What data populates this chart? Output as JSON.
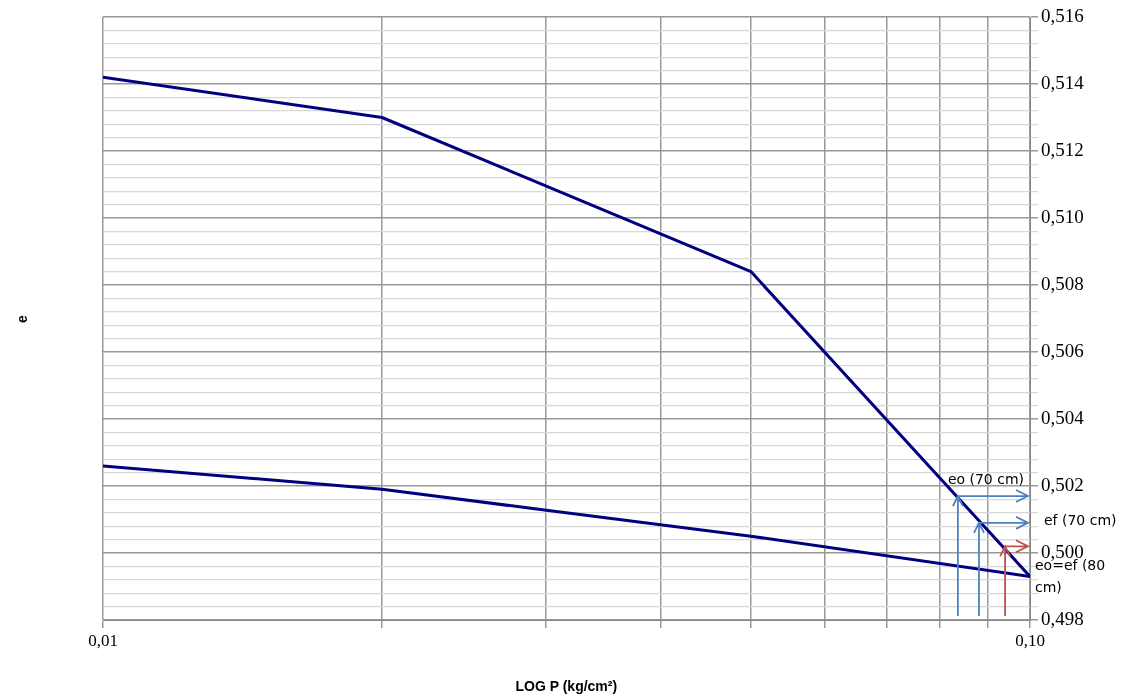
{
  "chart_data": {
    "type": "line",
    "xlabel": "LOG  P  (kg/cm²)",
    "ylabel": "e",
    "log": "x",
    "grid": true,
    "x": [
      0.01,
      0.02,
      0.05,
      0.1
    ],
    "series": [
      {
        "color": "#000080",
        "values": [
          0.5142,
          0.513,
          0.5084,
          0.4993
        ]
      },
      {
        "color": "#000080",
        "values": [
          0.5026,
          0.5019,
          0.5005,
          0.4993
        ]
      }
    ],
    "xlim": [
      0.01,
      0.1
    ],
    "xticks": [
      {
        "value": 0.01,
        "label": "0,01"
      },
      {
        "value": 0.02,
        "label": null
      },
      {
        "value": 0.03,
        "label": null
      },
      {
        "value": 0.04,
        "label": null
      },
      {
        "value": 0.05,
        "label": null
      },
      {
        "value": 0.06,
        "label": null
      },
      {
        "value": 0.07,
        "label": null
      },
      {
        "value": 0.08,
        "label": null
      },
      {
        "value": 0.09,
        "label": null
      },
      {
        "value": 0.1,
        "label": "0,10"
      }
    ],
    "ylim": [
      0.498,
      0.516
    ],
    "yticks": [
      {
        "value": 0.498,
        "label": "0,498"
      },
      {
        "value": 0.4984,
        "label": null
      },
      {
        "value": 0.4988,
        "label": null
      },
      {
        "value": 0.4992,
        "label": null
      },
      {
        "value": 0.4996,
        "label": null
      },
      {
        "value": 0.5,
        "label": "0,500"
      },
      {
        "value": 0.5004,
        "label": null
      },
      {
        "value": 0.5008,
        "label": null
      },
      {
        "value": 0.5012,
        "label": null
      },
      {
        "value": 0.5016,
        "label": null
      },
      {
        "value": 0.502,
        "label": "0,502"
      },
      {
        "value": 0.5024,
        "label": null
      },
      {
        "value": 0.5028,
        "label": null
      },
      {
        "value": 0.5032,
        "label": null
      },
      {
        "value": 0.5036,
        "label": null
      },
      {
        "value": 0.504,
        "label": "0,504"
      },
      {
        "value": 0.5044,
        "label": null
      },
      {
        "value": 0.5048,
        "label": null
      },
      {
        "value": 0.5052,
        "label": null
      },
      {
        "value": 0.5056,
        "label": null
      },
      {
        "value": 0.506,
        "label": "0,506"
      },
      {
        "value": 0.5064,
        "label": null
      },
      {
        "value": 0.5068,
        "label": null
      },
      {
        "value": 0.5072,
        "label": null
      },
      {
        "value": 0.5076,
        "label": null
      },
      {
        "value": 0.508,
        "label": "0,508"
      },
      {
        "value": 0.5084,
        "label": null
      },
      {
        "value": 0.5088,
        "label": null
      },
      {
        "value": 0.5092,
        "label": null
      },
      {
        "value": 0.5096,
        "label": null
      },
      {
        "value": 0.51,
        "label": "0,510"
      },
      {
        "value": 0.5104,
        "label": null
      },
      {
        "value": 0.5108,
        "label": null
      },
      {
        "value": 0.5112,
        "label": null
      },
      {
        "value": 0.5116,
        "label": null
      },
      {
        "value": 0.512,
        "label": "0,512"
      },
      {
        "value": 0.5124,
        "label": null
      },
      {
        "value": 0.5128,
        "label": null
      },
      {
        "value": 0.5132,
        "label": null
      },
      {
        "value": 0.5136,
        "label": null
      },
      {
        "value": 0.514,
        "label": "0,514"
      },
      {
        "value": 0.5144,
        "label": null
      },
      {
        "value": 0.5148,
        "label": null
      },
      {
        "value": 0.5152,
        "label": null
      },
      {
        "value": 0.5156,
        "label": null
      },
      {
        "value": 0.516,
        "label": "0,516"
      }
    ],
    "annotations": [
      {
        "text": "eo (70 cm)",
        "x": 0.0836,
        "y": 0.5017
      },
      {
        "text": "ef (70 cm)",
        "x": 0.0881,
        "y": 0.5009
      },
      {
        "text": "eo=ef (80 cm)",
        "x": 0.094,
        "y": 0.5002
      }
    ]
  }
}
